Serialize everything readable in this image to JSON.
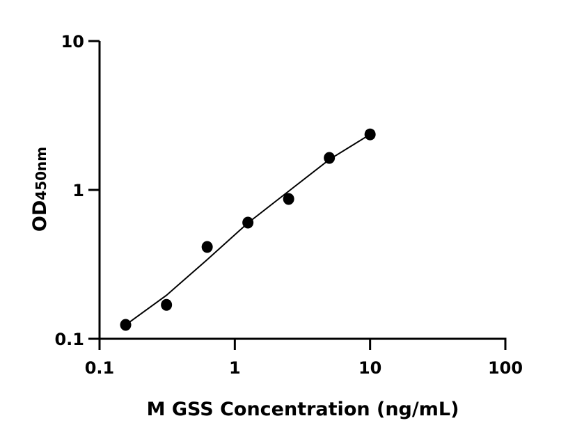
{
  "chart_data": {
    "type": "scatter",
    "title": "",
    "xlabel": "M GSS Concentration (ng/mL)",
    "ylabel": {
      "main": "OD",
      "subscript": "450nm"
    },
    "x_scale": "log",
    "y_scale": "log",
    "xlim": [
      0.1,
      100
    ],
    "ylim": [
      0.1,
      10
    ],
    "x_ticks": [
      {
        "value": 0.1,
        "label": "0.1"
      },
      {
        "value": 1,
        "label": "1"
      },
      {
        "value": 10,
        "label": "10"
      },
      {
        "value": 100,
        "label": "100"
      }
    ],
    "y_ticks": [
      {
        "value": 0.1,
        "label": "0.1"
      },
      {
        "value": 1,
        "label": "1"
      },
      {
        "value": 10,
        "label": "10"
      }
    ],
    "grid": false,
    "series": [
      {
        "x": [
          0.156,
          0.3125,
          0.625,
          1.25,
          2.5,
          5,
          10
        ],
        "y": [
          0.124,
          0.169,
          0.414,
          0.603,
          0.869,
          1.64,
          2.36
        ],
        "marker": "circle",
        "color": "#000000"
      }
    ],
    "fit_curve": {
      "x": [
        0.156,
        0.3125,
        0.625,
        1.25,
        2.5,
        5,
        10
      ],
      "y": [
        0.124,
        0.196,
        0.34,
        0.6,
        0.98,
        1.6,
        2.36
      ],
      "color": "#000000"
    }
  }
}
